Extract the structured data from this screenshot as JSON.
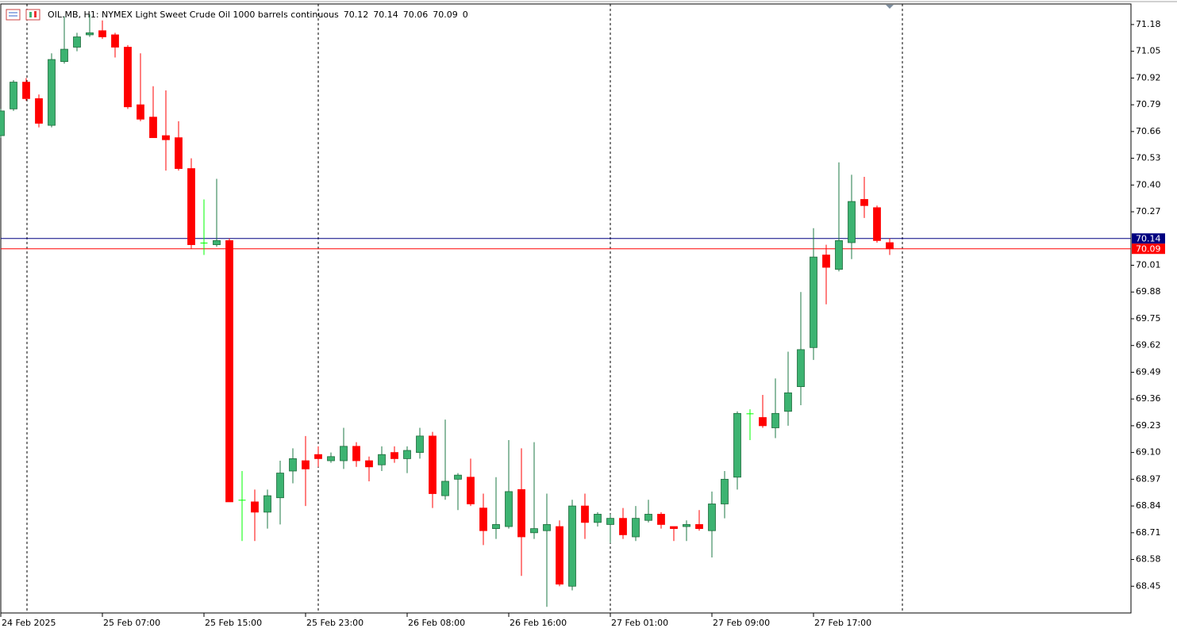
{
  "chart_data": {
    "type": "candlestick",
    "title": "OIL.MB, H1:  NYMEX Light Sweet Crude Oil 1000 barrels continuous",
    "info": "0",
    "categories": [
      "24 Feb 2025",
      null,
      null,
      null,
      null,
      null,
      null,
      null,
      "25 Feb 07:00",
      null,
      null,
      null,
      null,
      null,
      null,
      null,
      "25 Feb 15:00",
      null,
      null,
      null,
      null,
      null,
      null,
      null,
      "25 Feb 23:00",
      null,
      null,
      null,
      null,
      null,
      null,
      null,
      "26 Feb 08:00",
      null,
      null,
      null,
      null,
      null,
      null,
      null,
      "26 Feb 16:00",
      null,
      null,
      null,
      null,
      null,
      null,
      null,
      "27 Feb 01:00",
      null,
      null,
      null,
      null,
      null,
      null,
      null,
      "27 Feb 09:00",
      null,
      null,
      null,
      null,
      null,
      null,
      null,
      "27 Feb 17:00",
      null,
      null,
      null,
      null,
      null,
      null
    ],
    "open": [
      70.64,
      70.77,
      70.9,
      70.82,
      70.69,
      71.0,
      71.07,
      71.13,
      71.15,
      71.13,
      71.07,
      70.79,
      70.73,
      70.64,
      70.63,
      70.48,
      70.12,
      70.11,
      70.13,
      68.87,
      68.86,
      68.81,
      68.88,
      69.01,
      69.06,
      69.09,
      69.06,
      69.06,
      69.13,
      69.06,
      69.04,
      69.1,
      69.07,
      69.1,
      69.18,
      68.89,
      68.97,
      68.98,
      68.83,
      68.73,
      68.74,
      68.92,
      68.71,
      68.72,
      68.74,
      68.45,
      68.84,
      68.76,
      68.75,
      68.78,
      68.69,
      68.77,
      68.8,
      68.74,
      68.74,
      68.75,
      68.72,
      68.85,
      68.98,
      69.29,
      69.27,
      69.22,
      69.3,
      69.42,
      69.61,
      70.06,
      69.99,
      70.12,
      70.33,
      70.29,
      70.12
    ],
    "high": [
      70.77,
      70.91,
      70.92,
      70.84,
      71.04,
      71.22,
      71.14,
      71.23,
      71.2,
      71.14,
      71.08,
      71.04,
      70.88,
      70.86,
      70.71,
      70.53,
      70.33,
      70.43,
      70.14,
      69.01,
      68.92,
      68.92,
      69.06,
      69.12,
      69.18,
      69.13,
      69.1,
      69.22,
      69.15,
      69.08,
      69.13,
      69.13,
      69.13,
      69.22,
      69.2,
      69.26,
      69.0,
      69.07,
      68.9,
      68.98,
      69.16,
      69.12,
      69.15,
      68.9,
      68.77,
      68.87,
      68.9,
      68.81,
      68.8,
      68.83,
      68.84,
      68.87,
      68.81,
      68.74,
      68.77,
      68.82,
      68.91,
      69.01,
      69.3,
      69.31,
      69.38,
      69.46,
      69.59,
      69.88,
      70.19,
      70.11,
      70.51,
      70.45,
      70.44,
      70.3,
      70.14
    ],
    "low": [
      70.63,
      70.76,
      70.81,
      70.68,
      70.68,
      70.99,
      71.05,
      71.12,
      71.11,
      71.02,
      70.77,
      70.71,
      70.63,
      70.47,
      70.47,
      70.09,
      70.06,
      70.1,
      68.86,
      68.67,
      68.67,
      68.73,
      68.75,
      68.95,
      68.84,
      69.03,
      69.05,
      69.02,
      69.03,
      68.96,
      69.01,
      69.05,
      69.0,
      69.07,
      68.83,
      68.87,
      68.82,
      68.84,
      68.65,
      68.68,
      68.73,
      68.5,
      68.68,
      68.35,
      68.45,
      68.43,
      68.68,
      68.74,
      68.66,
      68.68,
      68.67,
      68.76,
      68.73,
      68.67,
      68.67,
      68.72,
      68.59,
      68.78,
      68.92,
      69.16,
      69.22,
      69.17,
      69.23,
      69.33,
      69.55,
      69.82,
      69.98,
      70.04,
      70.24,
      70.12,
      70.06
    ],
    "close": [
      70.76,
      70.9,
      70.82,
      70.7,
      71.01,
      71.06,
      71.12,
      71.14,
      71.12,
      71.07,
      70.78,
      70.72,
      70.63,
      70.62,
      70.48,
      70.11,
      70.12,
      70.13,
      68.86,
      68.87,
      68.81,
      68.89,
      69.0,
      69.07,
      69.02,
      69.07,
      69.08,
      69.13,
      69.06,
      69.03,
      69.09,
      69.07,
      69.11,
      69.18,
      68.9,
      68.96,
      68.99,
      68.85,
      68.72,
      68.75,
      68.91,
      68.69,
      68.73,
      68.75,
      68.46,
      68.84,
      68.76,
      68.8,
      68.78,
      68.7,
      68.78,
      68.8,
      68.75,
      68.73,
      68.75,
      68.73,
      68.85,
      68.97,
      69.29,
      69.29,
      69.23,
      69.29,
      69.39,
      69.6,
      70.05,
      70.0,
      70.13,
      70.32,
      70.3,
      70.13,
      70.09
    ],
    "up_color": "#3cb371",
    "down_color": "#ff0000",
    "doji_color": "#00ff00",
    "price_lines": [
      {
        "value": 70.14,
        "color": "#000080"
      },
      {
        "value": 70.09,
        "color": "#ff0000"
      }
    ],
    "ylim": [
      68.32,
      71.28
    ],
    "yticks": [
      71.18,
      71.05,
      70.92,
      70.79,
      70.66,
      70.53,
      {
        "value": 70.4,
        "label": "70.40"
      },
      70.27,
      70.01,
      69.88,
      69.75,
      69.62,
      69.49,
      69.36,
      69.23,
      {
        "value": 69.1,
        "label": "69.10"
      },
      68.97,
      68.84,
      68.71,
      68.58,
      68.45
    ]
  }
}
